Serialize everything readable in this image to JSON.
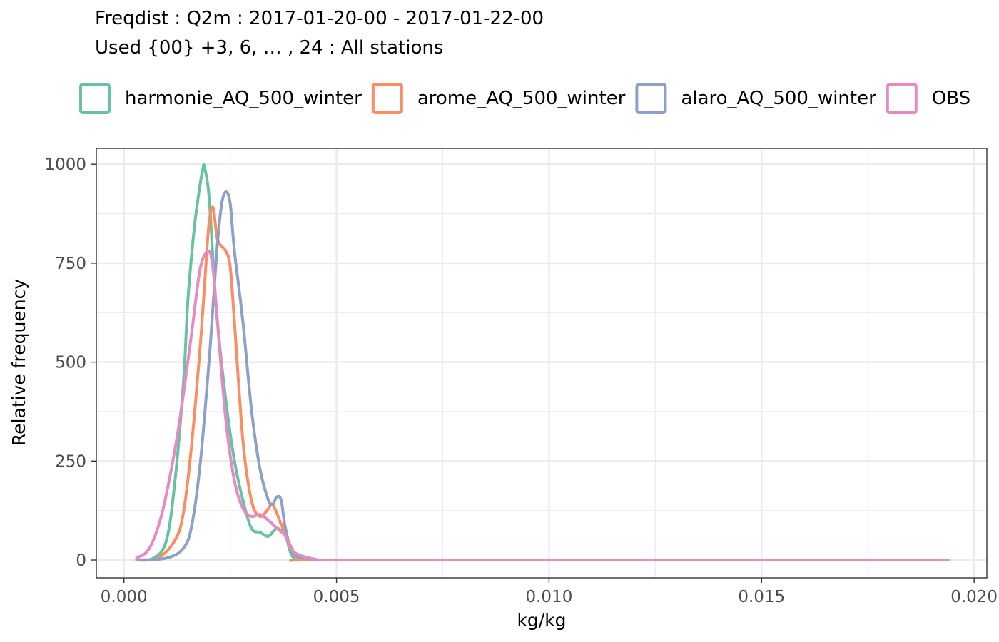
{
  "chart_data": {
    "type": "line",
    "title": "Freqdist : Q2m : 2017-01-20-00 - 2017-01-22-00",
    "subtitle": "Used {00} +3, 6, … , 24 : All stations",
    "xlabel": "kg/kg",
    "ylabel": "Relative frequency",
    "xlim": [
      -0.00065,
      0.0203
    ],
    "ylim": [
      -45,
      1040
    ],
    "x_ticks": [
      0,
      0.005,
      0.01,
      0.015,
      0.02
    ],
    "x_tick_labels": [
      "0.000",
      "0.005",
      "0.010",
      "0.015",
      "0.020"
    ],
    "y_ticks": [
      0,
      250,
      500,
      750,
      1000
    ],
    "y_tick_labels": [
      "0",
      "250",
      "500",
      "750",
      "1000"
    ],
    "grid": true,
    "legend_position": "top",
    "series": [
      {
        "name": "harmonie_AQ_500_winter",
        "color": "#66c2a5",
        "points": [
          [
            0.0003,
            0
          ],
          [
            0.0007,
            5
          ],
          [
            0.001,
            50
          ],
          [
            0.0012,
            200
          ],
          [
            0.0014,
            450
          ],
          [
            0.0015,
            650
          ],
          [
            0.0016,
            780
          ],
          [
            0.0017,
            880
          ],
          [
            0.00185,
            985
          ],
          [
            0.0019,
            990
          ],
          [
            0.002,
            920
          ],
          [
            0.0021,
            750
          ],
          [
            0.0022,
            600
          ],
          [
            0.0024,
            400
          ],
          [
            0.0026,
            250
          ],
          [
            0.0028,
            150
          ],
          [
            0.003,
            80
          ],
          [
            0.0032,
            70
          ],
          [
            0.0034,
            60
          ],
          [
            0.0036,
            80
          ],
          [
            0.0038,
            60
          ],
          [
            0.004,
            5
          ],
          [
            0.0045,
            0
          ],
          [
            0.01,
            0
          ],
          [
            0.015,
            0
          ],
          [
            0.0194,
            0
          ]
        ]
      },
      {
        "name": "arome_AQ_500_winter",
        "color": "#fc8d62",
        "points": [
          [
            0.0003,
            0
          ],
          [
            0.0008,
            5
          ],
          [
            0.0012,
            50
          ],
          [
            0.0014,
            120
          ],
          [
            0.0016,
            300
          ],
          [
            0.0018,
            550
          ],
          [
            0.0019,
            700
          ],
          [
            0.002,
            850
          ],
          [
            0.0021,
            890
          ],
          [
            0.0022,
            810
          ],
          [
            0.0024,
            780
          ],
          [
            0.0025,
            740
          ],
          [
            0.0026,
            600
          ],
          [
            0.0028,
            300
          ],
          [
            0.003,
            150
          ],
          [
            0.0032,
            110
          ],
          [
            0.0034,
            130
          ],
          [
            0.0035,
            140
          ],
          [
            0.0037,
            90
          ],
          [
            0.0039,
            40
          ],
          [
            0.0041,
            5
          ],
          [
            0.0045,
            0
          ],
          [
            0.01,
            0
          ],
          [
            0.015,
            0
          ],
          [
            0.0194,
            0
          ]
        ]
      },
      {
        "name": "alaro_AQ_500_winter",
        "color": "#8da0cb",
        "points": [
          [
            0.0003,
            0
          ],
          [
            0.001,
            5
          ],
          [
            0.0014,
            30
          ],
          [
            0.0016,
            90
          ],
          [
            0.0018,
            250
          ],
          [
            0.002,
            500
          ],
          [
            0.0021,
            650
          ],
          [
            0.0022,
            800
          ],
          [
            0.0023,
            900
          ],
          [
            0.0024,
            930
          ],
          [
            0.0025,
            900
          ],
          [
            0.0026,
            780
          ],
          [
            0.0028,
            600
          ],
          [
            0.003,
            380
          ],
          [
            0.0032,
            230
          ],
          [
            0.0034,
            150
          ],
          [
            0.0035,
            140
          ],
          [
            0.0036,
            160
          ],
          [
            0.0037,
            150
          ],
          [
            0.0038,
            80
          ],
          [
            0.004,
            15
          ],
          [
            0.0045,
            2
          ],
          [
            0.005,
            0
          ],
          [
            0.01,
            0
          ],
          [
            0.015,
            0
          ],
          [
            0.0194,
            0
          ]
        ]
      },
      {
        "name": "OBS",
        "color": "#e78ac3",
        "points": [
          [
            0.0003,
            5
          ],
          [
            0.0006,
            30
          ],
          [
            0.0009,
            120
          ],
          [
            0.0012,
            280
          ],
          [
            0.0014,
            420
          ],
          [
            0.0016,
            580
          ],
          [
            0.0018,
            740
          ],
          [
            0.002,
            780
          ],
          [
            0.0021,
            730
          ],
          [
            0.0022,
            600
          ],
          [
            0.0024,
            350
          ],
          [
            0.0026,
            200
          ],
          [
            0.0028,
            130
          ],
          [
            0.003,
            110
          ],
          [
            0.0032,
            115
          ],
          [
            0.0034,
            100
          ],
          [
            0.0036,
            80
          ],
          [
            0.0038,
            60
          ],
          [
            0.004,
            20
          ],
          [
            0.0045,
            2
          ],
          [
            0.005,
            0
          ],
          [
            0.01,
            0
          ],
          [
            0.015,
            0
          ],
          [
            0.0194,
            0
          ]
        ]
      }
    ]
  }
}
